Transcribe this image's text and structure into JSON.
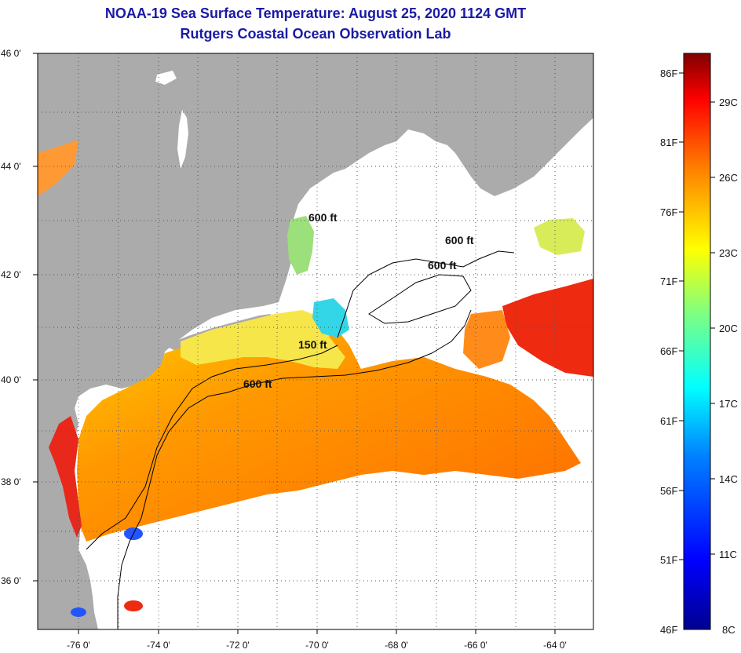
{
  "title_line1": "NOAA-19 Sea Surface Temperature:  August 25, 2020 1124 GMT",
  "title_line2": "Rutgers Coastal Ocean Observation Lab",
  "lat_labels": [
    "46 0'",
    "44 0'",
    "42 0'",
    "40 0'",
    "38 0'",
    "36 0'"
  ],
  "lon_labels": [
    "-76 0'",
    "-74 0'",
    "-72 0'",
    "-70 0'",
    "-68 0'",
    "-66 0'",
    "-64 0'"
  ],
  "contour_labels": [
    "600 ft",
    "600 ft",
    "600 ft",
    "150 ft",
    "600 ft"
  ],
  "colorbar": {
    "fahrenheit": [
      "86F",
      "81F",
      "76F",
      "71F",
      "66F",
      "61F",
      "56F",
      "51F",
      "46F"
    ],
    "celsius": [
      "29C",
      "26C",
      "23C",
      "20C",
      "17C",
      "14C",
      "11C",
      "8C"
    ]
  },
  "colors": {
    "land": "#ababab",
    "title": "#1a1aa6",
    "no_data": "#ffffff"
  }
}
